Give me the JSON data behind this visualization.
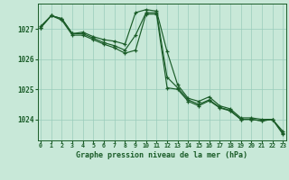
{
  "title": "Graphe pression niveau de la mer (hPa)",
  "background_color": "#c8e8d8",
  "grid_color": "#99ccbb",
  "line_color": "#1a5c28",
  "xlim": [
    -0.3,
    23.3
  ],
  "ylim": [
    1023.3,
    1027.85
  ],
  "yticks": [
    1024,
    1025,
    1026,
    1027
  ],
  "xticks": [
    0,
    1,
    2,
    3,
    4,
    5,
    6,
    7,
    8,
    9,
    10,
    11,
    12,
    13,
    14,
    15,
    16,
    17,
    18,
    19,
    20,
    21,
    22,
    23
  ],
  "hours": [
    0,
    1,
    2,
    3,
    4,
    5,
    6,
    7,
    8,
    9,
    10,
    11,
    12,
    13,
    14,
    15,
    16,
    17,
    18,
    19,
    20,
    21,
    22,
    23
  ],
  "series1": [
    1027.1,
    1027.45,
    1027.35,
    1026.85,
    1026.9,
    1026.75,
    1026.65,
    1026.6,
    1026.5,
    1027.55,
    1027.65,
    1027.6,
    1026.25,
    1025.15,
    1024.7,
    1024.6,
    1024.75,
    1024.45,
    1024.35,
    1024.05,
    1024.05,
    1024.0,
    1024.0,
    1023.6
  ],
  "series2": [
    1027.05,
    1027.45,
    1027.35,
    1026.85,
    1026.85,
    1026.7,
    1026.55,
    1026.45,
    1026.3,
    1026.8,
    1027.55,
    1027.55,
    1025.4,
    1025.05,
    1024.65,
    1024.5,
    1024.65,
    1024.4,
    1024.3,
    1024.0,
    1024.0,
    1023.95,
    1024.0,
    1023.55
  ],
  "series3": [
    1027.05,
    1027.45,
    1027.3,
    1026.8,
    1026.8,
    1026.65,
    1026.5,
    1026.38,
    1026.2,
    1026.3,
    1027.5,
    1027.5,
    1025.05,
    1025.0,
    1024.6,
    1024.45,
    1024.62,
    1024.38,
    1024.28,
    1024.0,
    1024.0,
    1023.95,
    1024.0,
    1023.5
  ]
}
